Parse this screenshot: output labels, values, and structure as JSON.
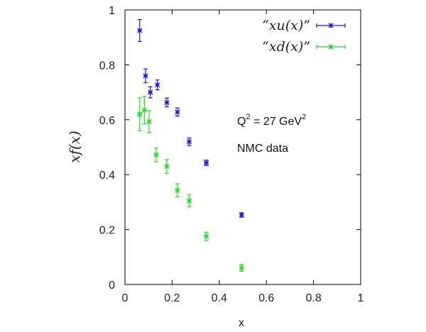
{
  "chart_data": {
    "type": "scatter",
    "xlabel": "x",
    "ylabel": "xf(x)",
    "xlim": [
      0,
      1
    ],
    "ylim": [
      0,
      1
    ],
    "xticks": [
      "0",
      "0.2",
      "0.4",
      "0.6",
      "0.8",
      "1"
    ],
    "yticks": [
      "0",
      "0.2",
      "0.4",
      "0.6",
      "0.8",
      "1"
    ],
    "grid": false,
    "legend_position": "top-right",
    "annotations": {
      "q2_prefix": "Q",
      "q2_exp": "2",
      "q2_eq": " = 27 GeV",
      "q2_unit_exp": "2",
      "dataset": "NMC data"
    },
    "series": [
      {
        "name": "“xu(x)”",
        "color": "#1a1acc",
        "points": [
          {
            "x": 0.0625,
            "y": 0.925,
            "err": 0.04
          },
          {
            "x": 0.0875,
            "y": 0.76,
            "err": 0.025
          },
          {
            "x": 0.1075,
            "y": 0.7,
            "err": 0.02
          },
          {
            "x": 0.1375,
            "y": 0.727,
            "err": 0.018
          },
          {
            "x": 0.1775,
            "y": 0.663,
            "err": 0.016
          },
          {
            "x": 0.2225,
            "y": 0.628,
            "err": 0.015
          },
          {
            "x": 0.2725,
            "y": 0.52,
            "err": 0.014
          },
          {
            "x": 0.345,
            "y": 0.443,
            "err": 0.01
          },
          {
            "x": 0.495,
            "y": 0.253,
            "err": 0.008
          }
        ]
      },
      {
        "name": "“xd(x)”",
        "color": "#22dd22",
        "points": [
          {
            "x": 0.0625,
            "y": 0.62,
            "err": 0.06
          },
          {
            "x": 0.0825,
            "y": 0.635,
            "err": 0.05
          },
          {
            "x": 0.1025,
            "y": 0.593,
            "err": 0.04
          },
          {
            "x": 0.1325,
            "y": 0.472,
            "err": 0.025
          },
          {
            "x": 0.1775,
            "y": 0.43,
            "err": 0.025
          },
          {
            "x": 0.2225,
            "y": 0.343,
            "err": 0.024
          },
          {
            "x": 0.2725,
            "y": 0.305,
            "err": 0.022
          },
          {
            "x": 0.345,
            "y": 0.175,
            "err": 0.015
          },
          {
            "x": 0.495,
            "y": 0.06,
            "err": 0.012
          }
        ]
      }
    ]
  }
}
